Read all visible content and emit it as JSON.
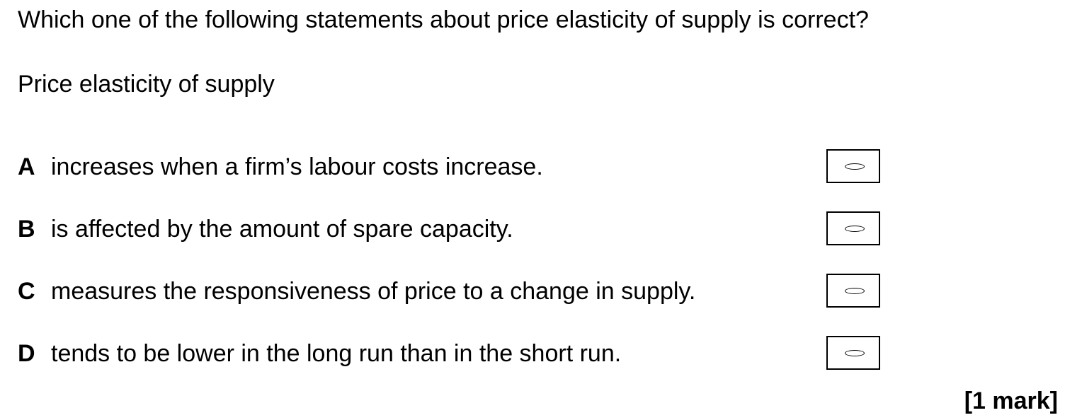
{
  "question": "Which one of the following statements about price elasticity of supply is correct?",
  "stem": "Price elasticity of supply",
  "options": [
    {
      "letter": "A",
      "text": "increases when a firm’s labour costs increase."
    },
    {
      "letter": "B",
      "text": "is affected by the amount of spare capacity."
    },
    {
      "letter": "C",
      "text": "measures the responsiveness of price to a change in supply."
    },
    {
      "letter": "D",
      "text": "tends to be lower in the long run than in the short run."
    }
  ],
  "marks": "[1 mark]"
}
